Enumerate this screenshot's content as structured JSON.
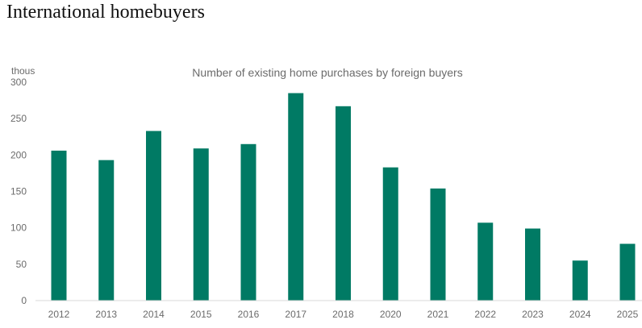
{
  "page": {
    "title": "International homebuyers"
  },
  "chart_data": {
    "type": "bar",
    "title": "Number of existing home purchases by foreign buyers",
    "unit_label": "thous",
    "xlabel": "",
    "ylabel": "",
    "categories": [
      "2012",
      "2013",
      "2014",
      "2015",
      "2016",
      "2017",
      "2018",
      "2020",
      "2021",
      "2022",
      "2023",
      "2024",
      "2025"
    ],
    "values": [
      206,
      193,
      233,
      209,
      215,
      285,
      267,
      183,
      154,
      107,
      99,
      55,
      78
    ],
    "ylim": [
      0,
      300
    ],
    "yticks": [
      0,
      50,
      100,
      150,
      200,
      250,
      300
    ],
    "color": "#007a64",
    "grid": false
  }
}
